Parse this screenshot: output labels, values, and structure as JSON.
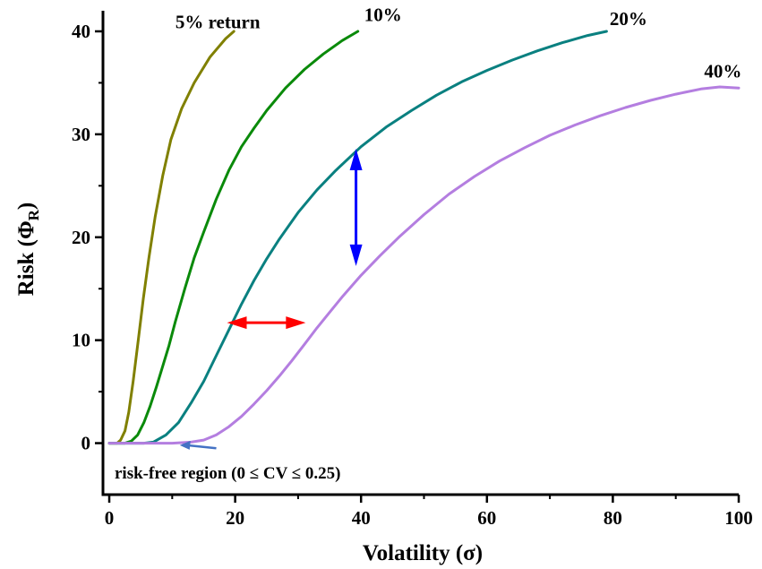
{
  "chart_data": {
    "type": "line",
    "xlabel": "Volatility (σ)",
    "ylabel_main": "Risk (Φ",
    "ylabel_sub": "R",
    "ylabel_close": ")",
    "xlim": [
      -1,
      100
    ],
    "ylim": [
      -5,
      42
    ],
    "x_ticks": [
      0,
      20,
      40,
      60,
      80,
      100
    ],
    "y_ticks": [
      0,
      10,
      20,
      30,
      40
    ],
    "grid": false,
    "legend": "none",
    "series": [
      {
        "name": "5% return",
        "color": "#808000",
        "label_at": [
          10.5,
          40.3
        ],
        "x": [
          0,
          1.25,
          1.8,
          2.5,
          3.1,
          3.8,
          4.6,
          5.4,
          6.3,
          7.3,
          8.5,
          9.8,
          11.5,
          13.5,
          16,
          18.5,
          19.8
        ],
        "y": [
          0,
          0,
          0.3,
          1.2,
          3,
          6,
          10,
          14,
          18,
          22,
          26,
          29.5,
          32.5,
          35,
          37.5,
          39.3,
          40
        ]
      },
      {
        "name": "10%",
        "color": "#0a8a0a",
        "label_at": [
          40.5,
          41.0
        ],
        "x": [
          0,
          2.5,
          3.5,
          4.5,
          5.5,
          6.5,
          7.5,
          8.5,
          9.5,
          10.5,
          12,
          13.5,
          15,
          17,
          19,
          21,
          23,
          25,
          28,
          31,
          34,
          37,
          39.5
        ],
        "y": [
          0,
          0,
          0.2,
          0.8,
          2,
          3.6,
          5.5,
          7.5,
          9.5,
          11.8,
          15,
          18,
          20.5,
          23.7,
          26.5,
          28.8,
          30.6,
          32.3,
          34.5,
          36.3,
          37.8,
          39.1,
          40
        ]
      },
      {
        "name": "20%",
        "color": "#0a8080",
        "label_at": [
          79.5,
          40.6
        ],
        "x": [
          0,
          5.5,
          7,
          9,
          11,
          13,
          15,
          17,
          19,
          21,
          23,
          25,
          27,
          30,
          33,
          36,
          40,
          44,
          48,
          52,
          56,
          60,
          64,
          68,
          72,
          76,
          79
        ],
        "y": [
          0,
          0,
          0.1,
          0.8,
          2,
          3.9,
          6,
          8.5,
          11,
          13.5,
          15.8,
          17.9,
          19.8,
          22.4,
          24.6,
          26.5,
          28.8,
          30.7,
          32.3,
          33.8,
          35.1,
          36.2,
          37.2,
          38.1,
          38.9,
          39.6,
          40
        ]
      },
      {
        "name": "40%",
        "color": "#b47ee0",
        "label_at": [
          94.5,
          35.5
        ],
        "x": [
          0,
          10,
          13,
          15,
          17,
          19,
          21,
          23,
          25,
          27,
          29,
          31,
          33,
          35,
          37,
          40,
          43,
          46,
          50,
          54,
          58,
          62,
          66,
          70,
          74,
          78,
          82,
          86,
          90,
          94,
          97,
          100
        ],
        "y": [
          0,
          0,
          0.1,
          0.3,
          0.8,
          1.6,
          2.6,
          3.8,
          5.1,
          6.5,
          8,
          9.6,
          11.2,
          12.7,
          14.2,
          16.3,
          18.2,
          20,
          22.2,
          24.2,
          25.9,
          27.4,
          28.7,
          29.9,
          30.9,
          31.8,
          32.6,
          33.3,
          33.9,
          34.4,
          34.6,
          34.5
        ]
      }
    ],
    "annotations": {
      "risk_free_text": "risk-free region (0 ≤ CV ≤ 0.25)",
      "risk_free_arrow_color": "#4472c4",
      "horizontal_arrow_color": "#ff0000",
      "vertical_arrow_color": "#0000ff"
    }
  }
}
